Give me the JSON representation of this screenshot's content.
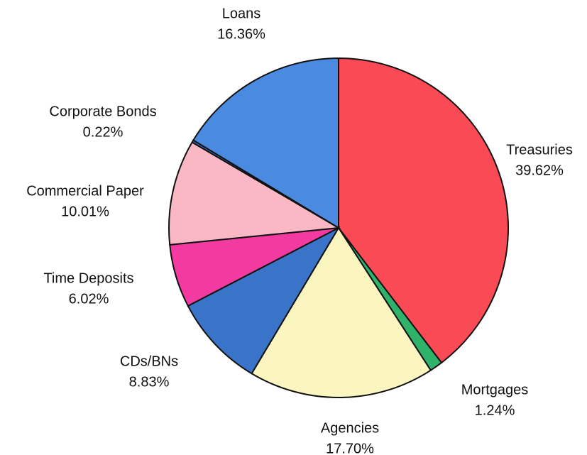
{
  "chart_data": {
    "type": "pie",
    "categories": [
      "Treasuries",
      "Mortgages",
      "Agencies",
      "CDs/BNs",
      "Time Deposits",
      "Commercial Paper",
      "Corporate Bonds",
      "Loans"
    ],
    "values": [
      39.62,
      1.24,
      17.7,
      8.83,
      6.02,
      10.01,
      0.22,
      16.36
    ],
    "value_labels": [
      "39.62%",
      "1.24%",
      "17.70%",
      "8.83%",
      "6.02%",
      "10.01%",
      "0.22%",
      "16.36%"
    ],
    "colors": [
      "#f94a55",
      "#2fb36b",
      "#fbf5c0",
      "#3a74c8",
      "#f23aa0",
      "#f9b8c4",
      "#3a74c8",
      "#4a8ae0"
    ],
    "start_angle": "top",
    "direction": "clockwise"
  }
}
